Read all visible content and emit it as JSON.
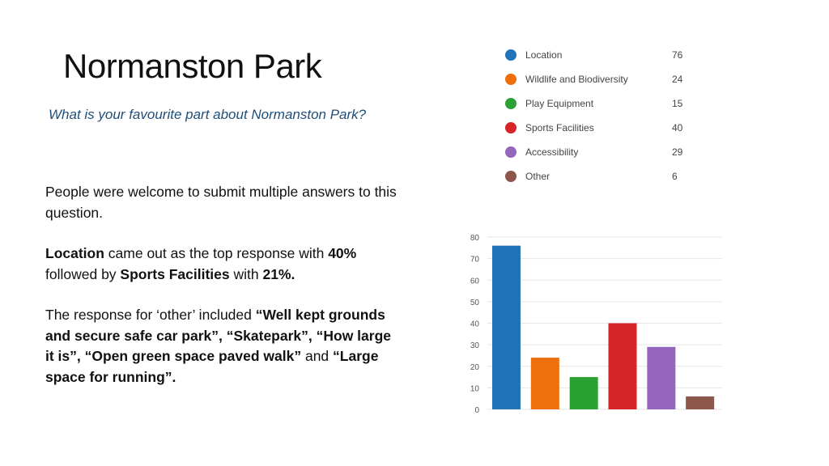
{
  "page": {
    "title": "Normanston Park",
    "question": "What is your favourite part about Normanston Park?"
  },
  "body": {
    "p1": "People were welcome to submit multiple answers to this question.",
    "p2_b1": "Location",
    "p2_t1": " came out as the top response with ",
    "p2_b2": "40%",
    "p2_t2": " followed by ",
    "p2_b3": "Sports Facilities",
    "p2_t3": "  with ",
    "p2_b4": "21%.",
    "p3_t1": "The response for ‘other’ included ",
    "p3_b1": "“Well kept grounds and secure safe car park”, “Skatepark”, “How large it is”, “Open green space paved walk”",
    "p3_t2": " and ",
    "p3_b2": "“Large space for running”."
  },
  "colors": {
    "Location": "#2273b8",
    "Wildlife and Biodiversity": "#ee6f0c",
    "Play Equipment": "#2aa132",
    "Sports Facilities": "#d62428",
    "Accessibility": "#9467bd",
    "Other": "#8c564b"
  },
  "chart_data": {
    "type": "bar",
    "categories": [
      "Location",
      "Wildlife and Biodiversity",
      "Play Equipment",
      "Sports Facilities",
      "Accessibility",
      "Other"
    ],
    "values": [
      76,
      24,
      15,
      40,
      29,
      6
    ],
    "ylim": [
      0,
      80
    ],
    "yticks": [
      0,
      10,
      20,
      30,
      40,
      50,
      60,
      70,
      80
    ],
    "grid": true,
    "legend": "top"
  }
}
